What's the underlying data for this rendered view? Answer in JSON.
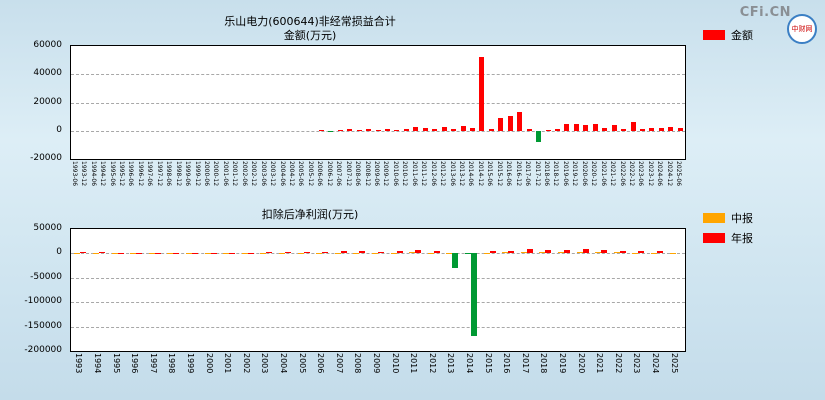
{
  "site": {
    "brand": "CFi.CN",
    "logo_text": "中财网"
  },
  "chart_data": [
    {
      "type": "bar",
      "title": "乐山电力(600644)非经常损益合计",
      "subtitle": "金额(万元)",
      "ylim": [
        -20000,
        60000
      ],
      "yticks": [
        60000,
        40000,
        20000,
        0,
        -20000
      ],
      "negative_color": "#009933",
      "grid": true,
      "legend_position": "top-right",
      "categories": [
        "1993-06",
        "1993-12",
        "1994-06",
        "1994-12",
        "1995-06",
        "1995-12",
        "1996-06",
        "1996-12",
        "1997-06",
        "1997-12",
        "1998-06",
        "1998-12",
        "1999-06",
        "1999-12",
        "2000-06",
        "2000-12",
        "2001-06",
        "2001-12",
        "2002-06",
        "2002-12",
        "2003-06",
        "2003-12",
        "2004-06",
        "2004-12",
        "2005-06",
        "2005-12",
        "2006-06",
        "2006-12",
        "2007-06",
        "2007-12",
        "2008-06",
        "2008-12",
        "2009-06",
        "2009-12",
        "2010-06",
        "2010-12",
        "2011-06",
        "2011-12",
        "2012-06",
        "2012-12",
        "2013-06",
        "2013-12",
        "2014-06",
        "2014-12",
        "2015-06",
        "2015-12",
        "2016-06",
        "2016-12",
        "2017-06",
        "2017-12",
        "2018-06",
        "2018-12",
        "2019-06",
        "2019-12",
        "2020-06",
        "2020-12",
        "2021-06",
        "2021-12",
        "2022-06",
        "2022-12",
        "2023-06",
        "2023-12",
        "2024-06",
        "2024-12",
        "2025-06"
      ],
      "series": [
        {
          "name": "金额",
          "color": "#ff0000",
          "values": [
            0,
            0,
            0,
            0,
            0,
            0,
            0,
            0,
            0,
            0,
            0,
            0,
            0,
            0,
            0,
            0,
            0,
            0,
            0,
            0,
            0,
            0,
            0,
            0,
            0,
            0,
            200,
            -800,
            600,
            1500,
            800,
            1200,
            600,
            1500,
            800,
            1500,
            3000,
            2000,
            1000,
            2500,
            1500,
            3500,
            2000,
            52000,
            1500,
            9000,
            10500,
            13000,
            1000,
            -8000,
            800,
            1500,
            5000,
            5000,
            4000,
            4500,
            2000,
            4000,
            1500,
            6500,
            1500,
            2000,
            2000,
            2500,
            2000
          ]
        }
      ]
    },
    {
      "type": "bar",
      "title": "扣除后净利润(万元)",
      "ylim": [
        -200000,
        50000
      ],
      "yticks": [
        50000,
        0,
        -50000,
        -100000,
        -150000,
        -200000
      ],
      "negative_color": "#009933",
      "grid": true,
      "legend_position": "top-right",
      "categories": [
        "1993",
        "1994",
        "1995",
        "1996",
        "1997",
        "1998",
        "1999",
        "2000",
        "2001",
        "2002",
        "2003",
        "2004",
        "2005",
        "2006",
        "2007",
        "2008",
        "2009",
        "2010",
        "2011",
        "2012",
        "2013",
        "2014",
        "2015",
        "2016",
        "2017",
        "2018",
        "2019",
        "2020",
        "2021",
        "2022",
        "2023",
        "2024",
        "2025"
      ],
      "series": [
        {
          "name": "中报",
          "color": "#ffa500",
          "values": [
            800,
            900,
            700,
            600,
            500,
            600,
            500,
            400,
            500,
            600,
            800,
            1000,
            900,
            800,
            1500,
            1200,
            1000,
            1500,
            2000,
            1500,
            1000,
            -2000,
            1500,
            2000,
            2500,
            2000,
            2500,
            3000,
            2500,
            2000,
            1500,
            1500,
            1200
          ]
        },
        {
          "name": "年报",
          "color": "#ff0000",
          "values": [
            2000,
            2200,
            1800,
            1500,
            1200,
            1500,
            1300,
            1000,
            1200,
            1500,
            2000,
            2500,
            2200,
            2000,
            5000,
            4000,
            3500,
            5000,
            6000,
            5000,
            -30000,
            -170000,
            4000,
            5000,
            8000,
            6000,
            7000,
            8000,
            7000,
            5000,
            4000,
            4000,
            0
          ]
        }
      ]
    }
  ]
}
